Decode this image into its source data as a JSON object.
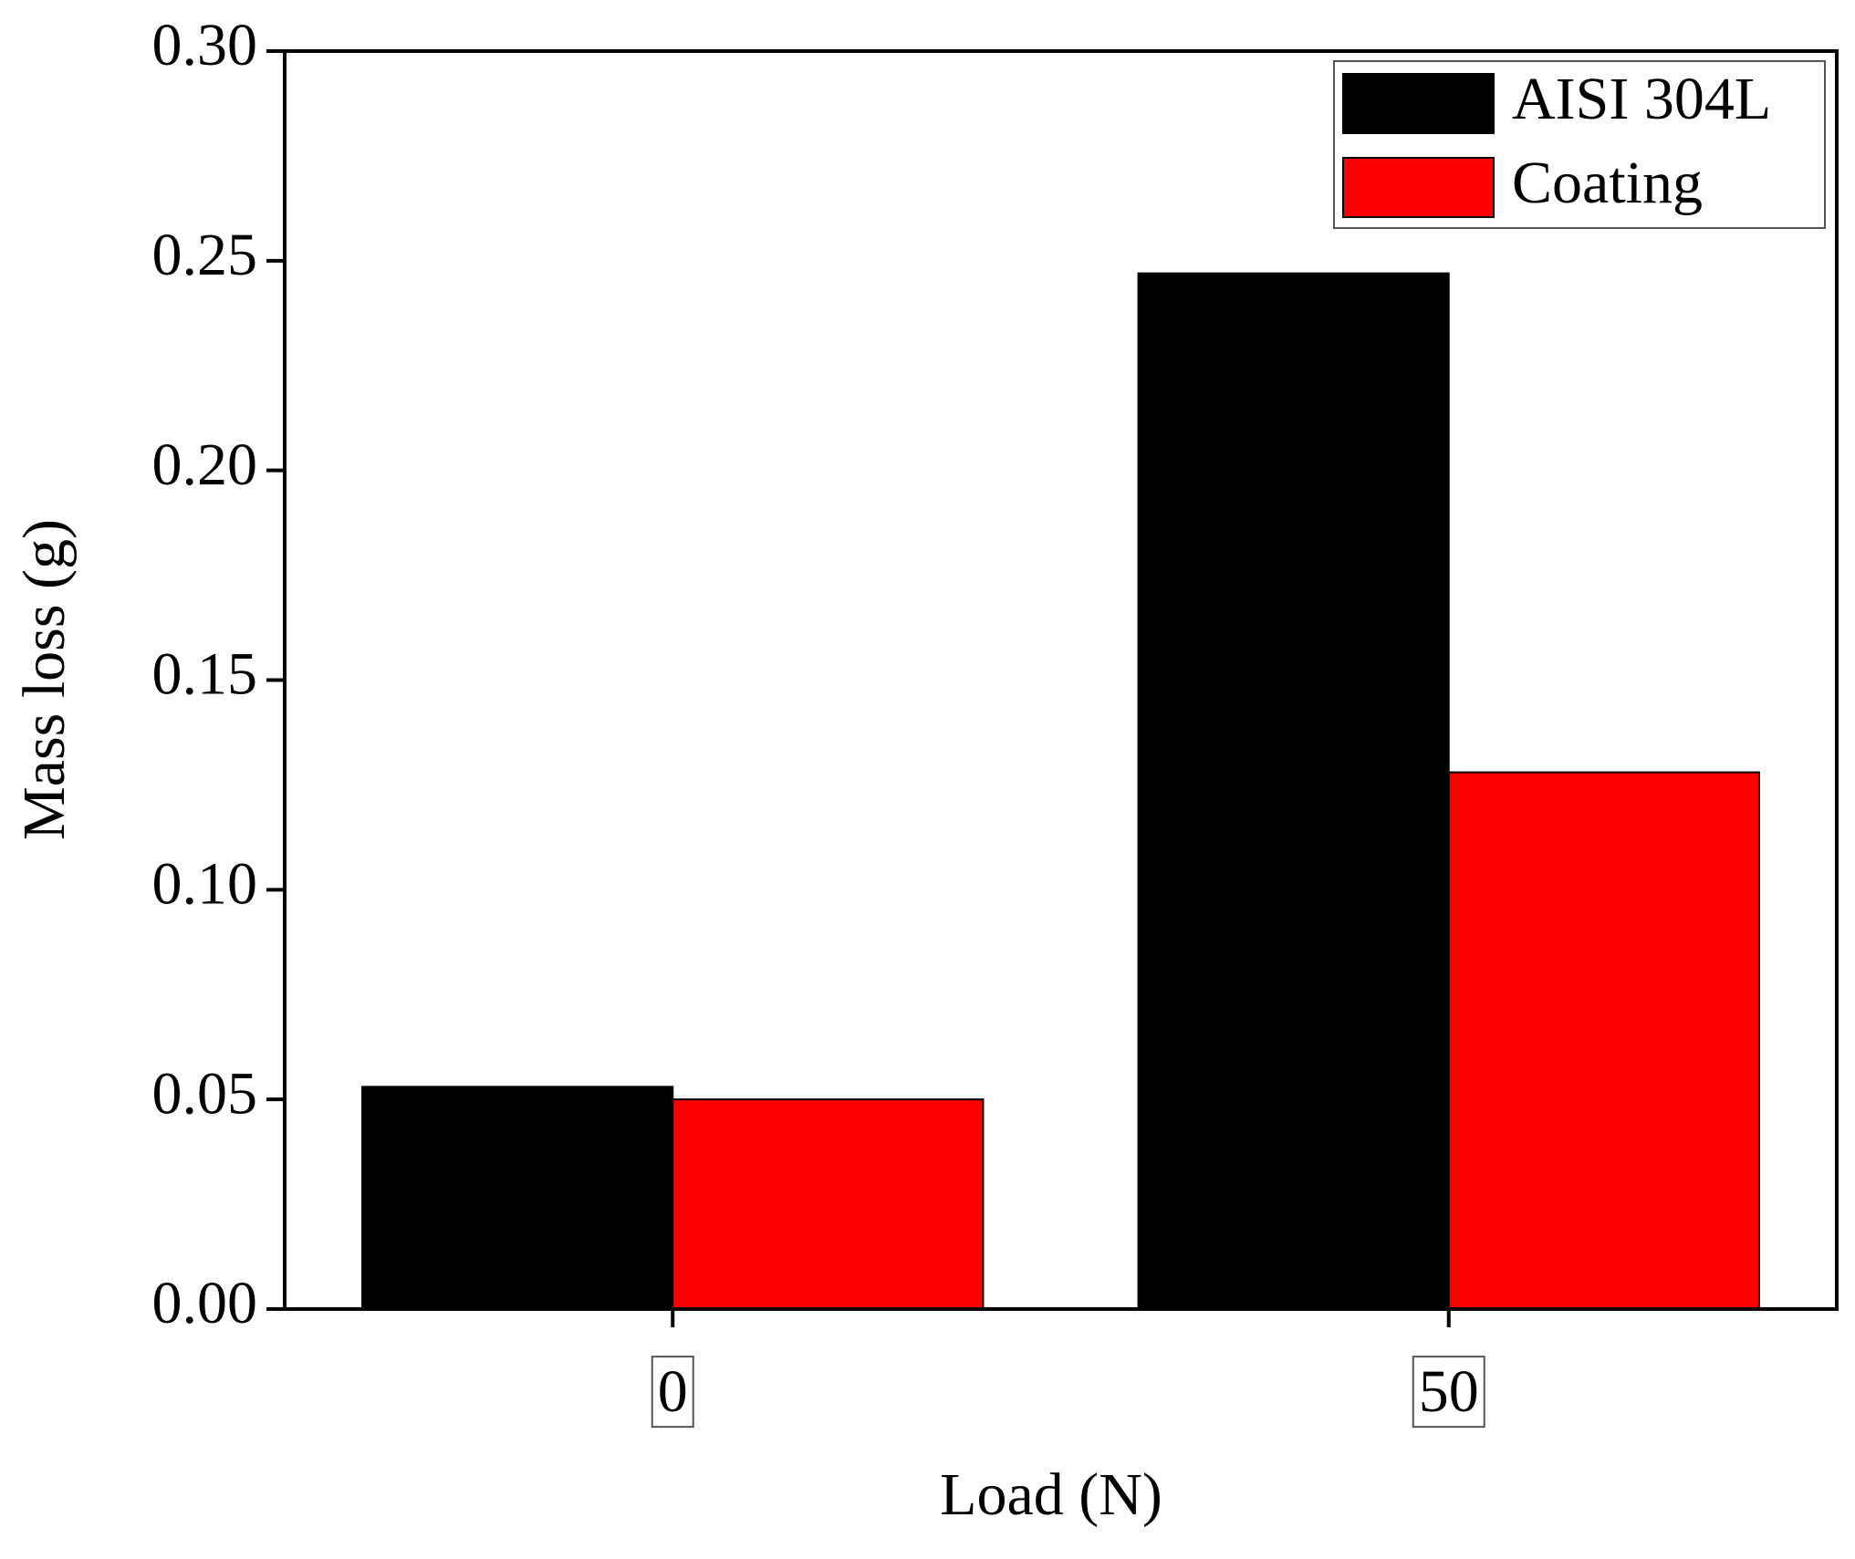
{
  "chart_data": {
    "type": "bar",
    "x_label": "Load (N)",
    "y_label": "Mass loss (g)",
    "categories": [
      "0",
      "50"
    ],
    "series": [
      {
        "name": "AISI 304L",
        "color": "#000000",
        "values": [
          0.053,
          0.247
        ]
      },
      {
        "name": "Coating",
        "color": "#ff0000",
        "values": [
          0.05,
          0.128
        ]
      }
    ],
    "ylim": [
      0,
      0.3
    ],
    "yticks": [
      {
        "value": 0,
        "label": "0.00"
      },
      {
        "value": 0.05,
        "label": "0.05"
      },
      {
        "value": 0.1,
        "label": "0.10"
      },
      {
        "value": 0.15,
        "label": "0.15"
      },
      {
        "value": 0.2,
        "label": "0.20"
      },
      {
        "value": 0.25,
        "label": "0.25"
      },
      {
        "value": 0.3,
        "label": "0.30"
      }
    ],
    "legend": "upper right"
  }
}
